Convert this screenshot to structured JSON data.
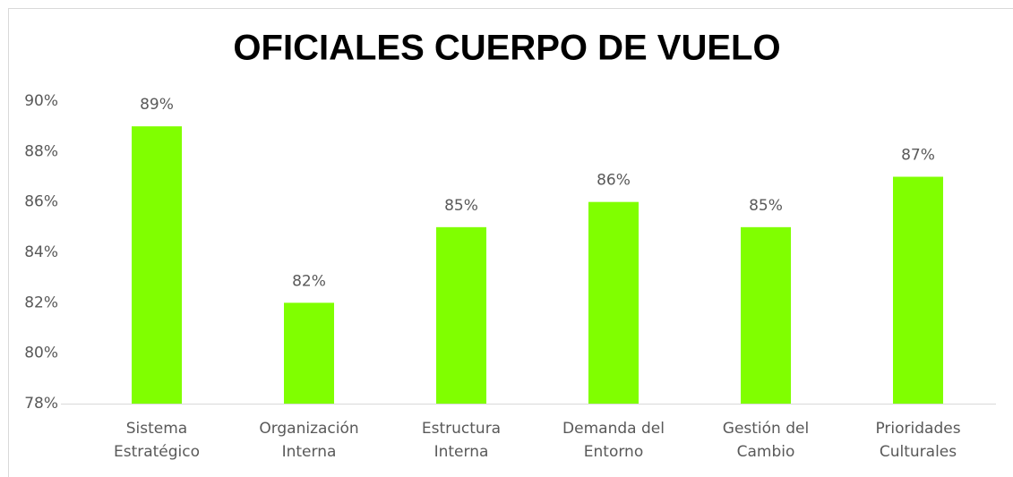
{
  "chart_data": {
    "type": "bar",
    "title": "OFICIALES CUERPO DE VUELO",
    "categories": [
      "Sistema Estratégico",
      "Organización Interna",
      "Estructura Interna",
      "Demanda del Entorno",
      "Gestión del Cambio",
      "Prioridades Culturales"
    ],
    "values": [
      89,
      82,
      85,
      86,
      85,
      87
    ],
    "value_labels": [
      "89%",
      "82%",
      "85%",
      "86%",
      "85%",
      "87%"
    ],
    "color": "#80ff00",
    "ylim": [
      78,
      90
    ],
    "yticks": [
      {
        "value": 78,
        "label": "78%"
      },
      {
        "value": 80,
        "label": "80%"
      },
      {
        "value": 82,
        "label": "82%"
      },
      {
        "value": 84,
        "label": "84%"
      },
      {
        "value": 86,
        "label": "86%"
      },
      {
        "value": 88,
        "label": "88%"
      },
      {
        "value": 90,
        "label": "90%"
      }
    ],
    "grid": false
  }
}
